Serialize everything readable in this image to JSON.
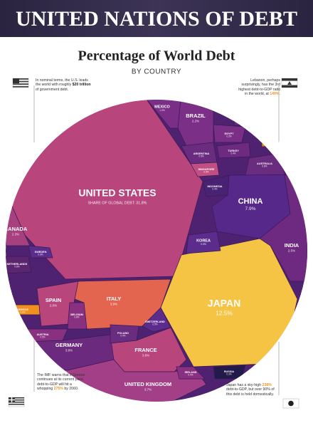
{
  "header": {
    "banner": "UNITED NATIONS OF DEBT"
  },
  "chart_data": {
    "type": "voronoi",
    "title": "Percentage of World Debt",
    "subtitle": "BY COUNTRY",
    "categories": [
      "UNITED STATES",
      "JAPAN",
      "CHINA",
      "ITALY",
      "FRANCE",
      "GERMANY",
      "UNITED KINGDOM",
      "INDIA",
      "CANADA",
      "BRAZIL",
      "SPAIN",
      "MEXICO",
      "KOREA",
      "AUSTRALIA",
      "BELGIUM",
      "NETHERLANDS",
      "SWITZERLAND",
      "AUSTRIA",
      "ARGENTINA",
      "SINGAPORE",
      "INDONESIA",
      "POLAND",
      "IRELAND",
      "RUSSIA",
      "TURKEY",
      "SWEDEN",
      "GREECE",
      "EGYPT",
      "ISRAEL",
      "LEBANON"
    ],
    "values": [
      31.8,
      12.5,
      7.9,
      3.9,
      3.8,
      3.8,
      3.7,
      2.5,
      2.3,
      2.2,
      2.0,
      1.0,
      0.9,
      0.8,
      0.8,
      0.8,
      0.5,
      0.5,
      0.5,
      0.5,
      0.4,
      0.4,
      0.4,
      0.3,
      0.4,
      0.3,
      0.6,
      0.3,
      0.3,
      0.1
    ],
    "value_labels": [
      "SHARE OF GLOBAL DEBT: 31.8%",
      "12.5%",
      "7.9%",
      "3.9%",
      "3.8%",
      "3.8%",
      "3.7%",
      "2.5%",
      "2.3%",
      "2.2%",
      "2.0%",
      "1.0%",
      "0.9%",
      "0.8%",
      "0.8%",
      "0.8%",
      "0.5%",
      "0.5%",
      "0.5%",
      "0.5%",
      "0.4%",
      "0.4%",
      "0.4%",
      "0.3%",
      "0.4%",
      "0.3%",
      "0.6%",
      "0.3%",
      "0.3%",
      "0.1%"
    ],
    "colors": [
      "#b8457c",
      "#f6c445",
      "#55288a",
      "#e3654f",
      "#b8457c",
      "#6c2a7e",
      "#a33f86",
      "#6e2a80",
      "#a6407e",
      "#7c2f86",
      "#b8457c",
      "#7a2e86",
      "#5b2c8c",
      "#6a2c7e",
      "#8a3080",
      "#5a2670",
      "#5b2c8c",
      "#8a3080",
      "#6a2c7e",
      "#c24f83",
      "#4a2274",
      "#6a2c7e",
      "#8a3080",
      "#221a4a",
      "#6e2a80",
      "#5b2c8c",
      "#f0901e",
      "#7a2e86",
      "#6a2c7e",
      "#f0901e"
    ],
    "annotations": [
      {
        "parts": [
          "In nominal terms, the U.S. leads the world with roughly ",
          "$20 trillion",
          " of government debt."
        ],
        "highlight": "#222222"
      },
      {
        "parts": [
          "Lebanon, perhaps surprisingly, has the 3rd highest debt-to-GDP ratio in the world, at ",
          "149%",
          "."
        ],
        "highlight": "#e8961e"
      },
      {
        "parts": [
          "The IMF warns that if Greece continues at its current pace, debt-to-GDP will hit a whopping ",
          "275%",
          " by 2060."
        ],
        "highlight": "#e8961e"
      },
      {
        "parts": [
          "Japan has a sky-high ",
          "238%",
          " debt-to-GDP, but over 90% of this debt is held domestically."
        ],
        "highlight": "#e8961e"
      }
    ]
  }
}
